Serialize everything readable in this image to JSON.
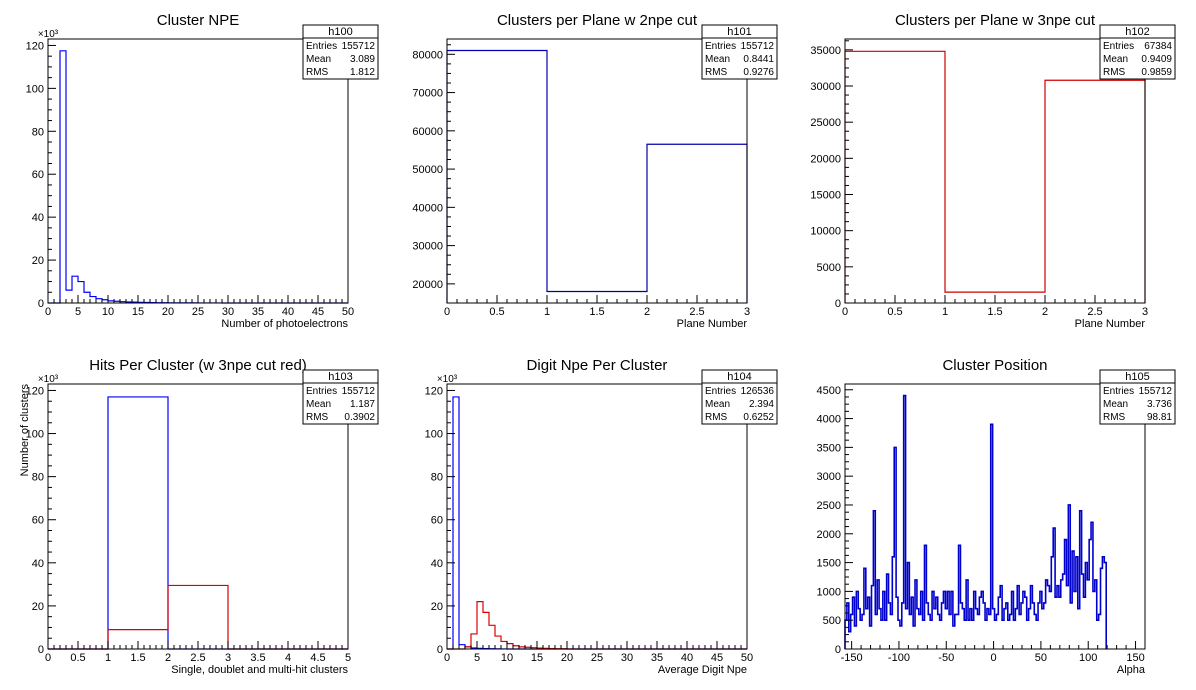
{
  "chart_data": [
    {
      "type": "histogram",
      "title": "Cluster NPE",
      "xlabel": "Number of photoelectrons",
      "ylabel": "",
      "xlim": [
        0,
        50
      ],
      "ylim": [
        0,
        123
      ],
      "exponent_label": "×10³",
      "xticks": [
        "0",
        "5",
        "10",
        "15",
        "20",
        "25",
        "30",
        "35",
        "40",
        "45",
        "50"
      ],
      "yticks": [
        "0",
        "20",
        "40",
        "60",
        "80",
        "100",
        "120"
      ],
      "grid": false,
      "legend": "top-right",
      "stats": {
        "name": "h100",
        "entries": "155712",
        "mean": "3.089",
        "rms": "1.812"
      },
      "series": [
        {
          "color": "#0000ff",
          "bin_edges": [
            0,
            1,
            2,
            3,
            4,
            5,
            6,
            7,
            8,
            9,
            10,
            11,
            12,
            13,
            14,
            15,
            16,
            17,
            18,
            19,
            20,
            21,
            22,
            23,
            24,
            25,
            26,
            27,
            28,
            29,
            30,
            35,
            40,
            45,
            50
          ],
          "values": [
            0,
            0,
            117.5,
            6,
            12.5,
            10,
            5,
            3,
            2,
            1.5,
            1,
            0.8,
            0.6,
            0.5,
            0.4,
            0.3,
            0.25,
            0.2,
            0.15,
            0.12,
            0.1,
            0.08,
            0.06,
            0.05,
            0.04,
            0.03,
            0.03,
            0.02,
            0.02,
            0.01,
            0.01,
            0,
            0,
            0
          ]
        }
      ]
    },
    {
      "type": "histogram",
      "title": "Clusters per Plane w 2npe cut",
      "xlabel": "Plane Number",
      "ylabel": "",
      "xlim": [
        0,
        3
      ],
      "ylim": [
        15000,
        84000
      ],
      "exponent_label": "",
      "xticks": [
        "0",
        "0.5",
        "1",
        "1.5",
        "2",
        "2.5",
        "3"
      ],
      "yticks": [
        "20000",
        "30000",
        "40000",
        "50000",
        "60000",
        "70000",
        "80000"
      ],
      "grid": false,
      "legend": "top-right",
      "stats": {
        "name": "h101",
        "entries": "155712",
        "mean": "0.8441",
        "rms": "0.9276"
      },
      "series": [
        {
          "color": "#0000aa",
          "bin_edges": [
            0,
            1,
            2,
            3
          ],
          "values": [
            81000,
            18000,
            56500
          ]
        }
      ]
    },
    {
      "type": "histogram",
      "title": "Clusters per Plane w 3npe cut",
      "xlabel": "Plane Number",
      "ylabel": "",
      "xlim": [
        0,
        3
      ],
      "ylim": [
        0,
        36500
      ],
      "exponent_label": "",
      "xticks": [
        "0",
        "0.5",
        "1",
        "1.5",
        "2",
        "2.5",
        "3"
      ],
      "yticks": [
        "0",
        "5000",
        "10000",
        "15000",
        "20000",
        "25000",
        "30000",
        "35000"
      ],
      "grid": false,
      "legend": "top-right",
      "stats": {
        "name": "h102",
        "entries": "67384",
        "mean": "0.9409",
        "rms": "0.9859"
      },
      "series": [
        {
          "color": "#cc0000",
          "bin_edges": [
            0,
            1,
            2,
            3
          ],
          "values": [
            34800,
            1500,
            30800
          ]
        }
      ]
    },
    {
      "type": "histogram",
      "title": "Hits Per Cluster (w 3npe cut red)",
      "xlabel": "Single, doublet and multi-hit clusters",
      "ylabel": "Number of clusters",
      "xlim": [
        0,
        5
      ],
      "ylim": [
        0,
        123
      ],
      "exponent_label": "×10³",
      "xticks": [
        "0",
        "0.5",
        "1",
        "1.5",
        "2",
        "2.5",
        "3",
        "3.5",
        "4",
        "4.5",
        "5"
      ],
      "yticks": [
        "0",
        "20",
        "40",
        "60",
        "80",
        "100",
        "120"
      ],
      "grid": false,
      "legend": "top-right",
      "stats": {
        "name": "h103",
        "entries": "155712",
        "mean": "1.187",
        "rms": "0.3902"
      },
      "series": [
        {
          "color": "#0000ff",
          "bin_edges": [
            0,
            1,
            2,
            3,
            4,
            5
          ],
          "values": [
            0,
            117,
            0,
            0,
            0
          ]
        },
        {
          "color": "#dd0000",
          "bin_edges": [
            0,
            1,
            2,
            3,
            4,
            5
          ],
          "values": [
            0,
            9,
            29.5,
            0,
            0
          ]
        }
      ]
    },
    {
      "type": "histogram",
      "title": "Digit Npe Per Cluster",
      "xlabel": "Average Digit Npe",
      "ylabel": "",
      "xlim": [
        0,
        50
      ],
      "ylim": [
        0,
        123
      ],
      "exponent_label": "×10³",
      "xticks": [
        "0",
        "5",
        "10",
        "15",
        "20",
        "25",
        "30",
        "35",
        "40",
        "45",
        "50"
      ],
      "yticks": [
        "0",
        "20",
        "40",
        "60",
        "80",
        "100",
        "120"
      ],
      "grid": false,
      "legend": "top-right",
      "stats": {
        "name": "h104",
        "entries": "126536",
        "mean": "2.394",
        "rms": "0.6252"
      },
      "series": [
        {
          "color": "#0000ff",
          "bin_edges": [
            0,
            1,
            2,
            3,
            4,
            5,
            6,
            7,
            8,
            9,
            10,
            11,
            12,
            13,
            14,
            15,
            20,
            25,
            30,
            35,
            40,
            45,
            50
          ],
          "values": [
            0,
            117,
            2,
            1,
            0.5,
            0.3,
            0.2,
            0.1,
            0.05,
            0.02,
            0,
            0,
            0,
            0,
            0,
            0,
            0,
            0,
            0,
            0,
            0,
            0
          ]
        },
        {
          "color": "#dd0000",
          "bin_edges": [
            0,
            1,
            2,
            3,
            4,
            5,
            6,
            7,
            8,
            9,
            10,
            11,
            12,
            13,
            14,
            15,
            16,
            17,
            18,
            19,
            20,
            25,
            30,
            35,
            40,
            45,
            50
          ],
          "values": [
            0,
            0,
            0,
            1,
            7,
            22,
            17,
            11,
            6,
            3.5,
            2.5,
            1.5,
            1,
            0.8,
            0.6,
            0.4,
            0.3,
            0.2,
            0.15,
            0.1,
            0,
            0,
            0,
            0,
            0,
            0
          ]
        }
      ]
    },
    {
      "type": "histogram",
      "title": "Cluster Position",
      "xlabel": "Alpha",
      "ylabel": "",
      "xlim": [
        -157,
        160
      ],
      "ylim": [
        0,
        4600
      ],
      "exponent_label": "",
      "xticks": [
        "-150",
        "-100",
        "-50",
        "0",
        "50",
        "100",
        "150"
      ],
      "xtick_values": [
        -150,
        -100,
        -50,
        0,
        50,
        100,
        150
      ],
      "yticks": [
        "0",
        "500",
        "1000",
        "1500",
        "2000",
        "2500",
        "3000",
        "3500",
        "4000",
        "4500"
      ],
      "grid": false,
      "legend": "top-right",
      "stats": {
        "name": "h105",
        "entries": "155712",
        "mean": "3.736",
        "rms": "98.81"
      },
      "series": [
        {
          "color": "#0000cc",
          "bin_edges_start": -157,
          "bin_width": 2,
          "values": [
            500,
            800,
            300,
            600,
            900,
            400,
            1000,
            700,
            500,
            600,
            1400,
            700,
            900,
            400,
            1100,
            2400,
            600,
            1200,
            700,
            500,
            1000,
            500,
            1300,
            800,
            600,
            1600,
            3500,
            900,
            500,
            400,
            800,
            4400,
            700,
            1500,
            600,
            900,
            400,
            1200,
            700,
            600,
            1000,
            500,
            1800,
            800,
            600,
            500,
            1000,
            700,
            900,
            600,
            500,
            800,
            1000,
            700,
            1000,
            600,
            1000,
            400,
            600,
            600,
            1800,
            800,
            700,
            500,
            1200,
            500,
            700,
            500,
            1000,
            700,
            600,
            900,
            1000,
            800,
            500,
            700,
            600,
            3900,
            700,
            500,
            600,
            900,
            1100,
            500,
            700,
            800,
            500,
            600,
            1000,
            500,
            700,
            1100,
            600,
            800,
            1000,
            900,
            500,
            700,
            1100,
            800,
            600,
            500,
            800,
            1000,
            700,
            800,
            1200,
            1100,
            1000,
            1600,
            2100,
            900,
            1100,
            900,
            1200,
            1300,
            1900,
            1100,
            2500,
            800,
            1700,
            1000,
            1600,
            700,
            2400,
            1300,
            900,
            1500,
            1200,
            1900,
            2200,
            1000,
            1200,
            500,
            600,
            1400,
            1600,
            1500
          ]
        }
      ]
    }
  ]
}
